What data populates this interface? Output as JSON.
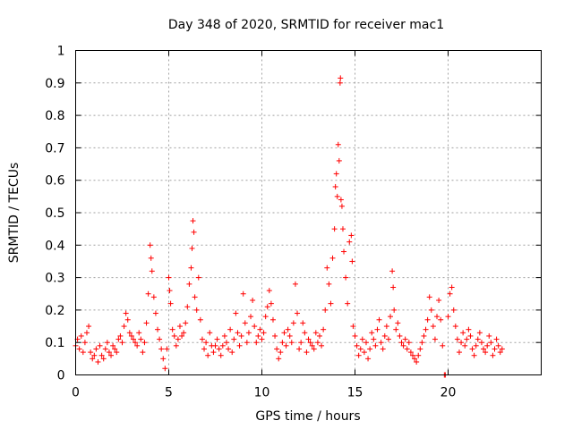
{
  "chart_data": {
    "type": "scatter",
    "title": "Day 348 of 2020, SRMTID for receiver mac1",
    "xlabel": "GPS time / hours",
    "ylabel": "SRMTID / TECUs",
    "xlim": [
      0,
      25
    ],
    "ylim": [
      0,
      1
    ],
    "xticks": [
      0,
      5,
      10,
      15,
      20
    ],
    "xtick_labels": [
      "0",
      "5",
      "10",
      "15",
      "20"
    ],
    "yticks": [
      0,
      0.1,
      0.2,
      0.3,
      0.4,
      0.5,
      0.6,
      0.7,
      0.8,
      0.9,
      1
    ],
    "ytick_labels": [
      "0",
      "0.1",
      "0.2",
      "0.3",
      "0.4",
      "0.5",
      "0.6",
      "0.7",
      "0.8",
      "0.9",
      "1"
    ],
    "grid": true,
    "marker": "+",
    "marker_color": "#ff0000",
    "series": [
      {
        "name": "SRMTID",
        "points": [
          [
            0.0,
            0.09
          ],
          [
            0.1,
            0.11
          ],
          [
            0.2,
            0.08
          ],
          [
            0.3,
            0.12
          ],
          [
            0.4,
            0.07
          ],
          [
            0.5,
            0.1
          ],
          [
            0.6,
            0.13
          ],
          [
            0.7,
            0.15
          ],
          [
            0.8,
            0.07
          ],
          [
            0.9,
            0.05
          ],
          [
            1.0,
            0.06
          ],
          [
            1.1,
            0.08
          ],
          [
            1.2,
            0.04
          ],
          [
            1.3,
            0.09
          ],
          [
            1.4,
            0.06
          ],
          [
            1.5,
            0.05
          ],
          [
            1.6,
            0.08
          ],
          [
            1.7,
            0.1
          ],
          [
            1.8,
            0.07
          ],
          [
            1.9,
            0.06
          ],
          [
            2.0,
            0.09
          ],
          [
            2.1,
            0.08
          ],
          [
            2.2,
            0.07
          ],
          [
            2.3,
            0.11
          ],
          [
            2.4,
            0.12
          ],
          [
            2.5,
            0.1
          ],
          [
            2.6,
            0.15
          ],
          [
            2.7,
            0.19
          ],
          [
            2.8,
            0.17
          ],
          [
            2.9,
            0.13
          ],
          [
            3.0,
            0.12
          ],
          [
            3.1,
            0.11
          ],
          [
            3.2,
            0.1
          ],
          [
            3.3,
            0.09
          ],
          [
            3.4,
            0.13
          ],
          [
            3.5,
            0.11
          ],
          [
            3.6,
            0.07
          ],
          [
            3.7,
            0.1
          ],
          [
            3.8,
            0.16
          ],
          [
            3.9,
            0.25
          ],
          [
            4.0,
            0.4
          ],
          [
            4.05,
            0.36
          ],
          [
            4.1,
            0.32
          ],
          [
            4.2,
            0.24
          ],
          [
            4.3,
            0.19
          ],
          [
            4.4,
            0.14
          ],
          [
            4.5,
            0.11
          ],
          [
            4.6,
            0.08
          ],
          [
            4.7,
            0.05
          ],
          [
            4.8,
            0.02
          ],
          [
            4.9,
            0.08
          ],
          [
            5.0,
            0.3
          ],
          [
            5.05,
            0.26
          ],
          [
            5.1,
            0.22
          ],
          [
            5.2,
            0.14
          ],
          [
            5.3,
            0.12
          ],
          [
            5.4,
            0.09
          ],
          [
            5.5,
            0.11
          ],
          [
            5.6,
            0.15
          ],
          [
            5.7,
            0.12
          ],
          [
            5.8,
            0.13
          ],
          [
            5.9,
            0.16
          ],
          [
            6.0,
            0.21
          ],
          [
            6.1,
            0.28
          ],
          [
            6.2,
            0.33
          ],
          [
            6.25,
            0.39
          ],
          [
            6.3,
            0.475
          ],
          [
            6.35,
            0.44
          ],
          [
            6.4,
            0.24
          ],
          [
            6.5,
            0.2
          ],
          [
            6.6,
            0.3
          ],
          [
            6.7,
            0.17
          ],
          [
            6.8,
            0.11
          ],
          [
            6.9,
            0.08
          ],
          [
            7.0,
            0.1
          ],
          [
            7.1,
            0.06
          ],
          [
            7.2,
            0.13
          ],
          [
            7.3,
            0.09
          ],
          [
            7.4,
            0.07
          ],
          [
            7.5,
            0.09
          ],
          [
            7.6,
            0.11
          ],
          [
            7.7,
            0.08
          ],
          [
            7.8,
            0.06
          ],
          [
            7.9,
            0.09
          ],
          [
            8.0,
            0.12
          ],
          [
            8.1,
            0.1
          ],
          [
            8.2,
            0.08
          ],
          [
            8.3,
            0.14
          ],
          [
            8.4,
            0.07
          ],
          [
            8.5,
            0.11
          ],
          [
            8.6,
            0.19
          ],
          [
            8.7,
            0.13
          ],
          [
            8.8,
            0.09
          ],
          [
            8.9,
            0.12
          ],
          [
            9.0,
            0.25
          ],
          [
            9.1,
            0.16
          ],
          [
            9.2,
            0.1
          ],
          [
            9.3,
            0.13
          ],
          [
            9.4,
            0.18
          ],
          [
            9.5,
            0.23
          ],
          [
            9.6,
            0.15
          ],
          [
            9.7,
            0.1
          ],
          [
            9.8,
            0.12
          ],
          [
            9.9,
            0.14
          ],
          [
            10.0,
            0.11
          ],
          [
            10.1,
            0.13
          ],
          [
            10.2,
            0.18
          ],
          [
            10.3,
            0.21
          ],
          [
            10.4,
            0.26
          ],
          [
            10.5,
            0.22
          ],
          [
            10.6,
            0.17
          ],
          [
            10.7,
            0.12
          ],
          [
            10.8,
            0.08
          ],
          [
            10.9,
            0.05
          ],
          [
            11.0,
            0.07
          ],
          [
            11.1,
            0.1
          ],
          [
            11.2,
            0.13
          ],
          [
            11.3,
            0.09
          ],
          [
            11.4,
            0.14
          ],
          [
            11.5,
            0.12
          ],
          [
            11.6,
            0.1
          ],
          [
            11.7,
            0.16
          ],
          [
            11.8,
            0.28
          ],
          [
            11.9,
            0.19
          ],
          [
            12.0,
            0.08
          ],
          [
            12.1,
            0.1
          ],
          [
            12.2,
            0.16
          ],
          [
            12.3,
            0.13
          ],
          [
            12.4,
            0.07
          ],
          [
            12.5,
            0.11
          ],
          [
            12.6,
            0.1
          ],
          [
            12.7,
            0.09
          ],
          [
            12.8,
            0.08
          ],
          [
            12.9,
            0.13
          ],
          [
            13.0,
            0.1
          ],
          [
            13.1,
            0.12
          ],
          [
            13.2,
            0.09
          ],
          [
            13.3,
            0.14
          ],
          [
            13.4,
            0.2
          ],
          [
            13.5,
            0.33
          ],
          [
            13.6,
            0.28
          ],
          [
            13.7,
            0.22
          ],
          [
            13.8,
            0.36
          ],
          [
            13.9,
            0.45
          ],
          [
            13.95,
            0.58
          ],
          [
            14.0,
            0.62
          ],
          [
            14.05,
            0.55
          ],
          [
            14.1,
            0.71
          ],
          [
            14.15,
            0.66
          ],
          [
            14.2,
            0.9
          ],
          [
            14.22,
            0.915
          ],
          [
            14.25,
            0.54
          ],
          [
            14.3,
            0.52
          ],
          [
            14.35,
            0.45
          ],
          [
            14.4,
            0.38
          ],
          [
            14.5,
            0.3
          ],
          [
            14.6,
            0.22
          ],
          [
            14.7,
            0.41
          ],
          [
            14.8,
            0.43
          ],
          [
            14.85,
            0.35
          ],
          [
            14.9,
            0.15
          ],
          [
            15.0,
            0.12
          ],
          [
            15.1,
            0.09
          ],
          [
            15.2,
            0.06
          ],
          [
            15.3,
            0.08
          ],
          [
            15.4,
            0.11
          ],
          [
            15.5,
            0.07
          ],
          [
            15.6,
            0.1
          ],
          [
            15.7,
            0.05
          ],
          [
            15.8,
            0.08
          ],
          [
            15.9,
            0.13
          ],
          [
            16.0,
            0.11
          ],
          [
            16.1,
            0.09
          ],
          [
            16.2,
            0.14
          ],
          [
            16.3,
            0.17
          ],
          [
            16.4,
            0.1
          ],
          [
            16.5,
            0.08
          ],
          [
            16.6,
            0.12
          ],
          [
            16.7,
            0.15
          ],
          [
            16.8,
            0.11
          ],
          [
            16.9,
            0.18
          ],
          [
            17.0,
            0.32
          ],
          [
            17.05,
            0.27
          ],
          [
            17.1,
            0.2
          ],
          [
            17.2,
            0.14
          ],
          [
            17.3,
            0.16
          ],
          [
            17.4,
            0.12
          ],
          [
            17.5,
            0.1
          ],
          [
            17.6,
            0.09
          ],
          [
            17.7,
            0.11
          ],
          [
            17.8,
            0.08
          ],
          [
            17.9,
            0.1
          ],
          [
            18.0,
            0.07
          ],
          [
            18.1,
            0.06
          ],
          [
            18.2,
            0.05
          ],
          [
            18.3,
            0.04
          ],
          [
            18.4,
            0.06
          ],
          [
            18.5,
            0.08
          ],
          [
            18.6,
            0.1
          ],
          [
            18.7,
            0.12
          ],
          [
            18.8,
            0.14
          ],
          [
            18.9,
            0.17
          ],
          [
            19.0,
            0.24
          ],
          [
            19.1,
            0.2
          ],
          [
            19.2,
            0.15
          ],
          [
            19.3,
            0.11
          ],
          [
            19.4,
            0.18
          ],
          [
            19.5,
            0.23
          ],
          [
            19.6,
            0.17
          ],
          [
            19.7,
            0.09
          ],
          [
            19.8,
            0.0
          ],
          [
            19.85,
            0.0
          ],
          [
            20.0,
            0.18
          ],
          [
            20.1,
            0.25
          ],
          [
            20.2,
            0.27
          ],
          [
            20.3,
            0.2
          ],
          [
            20.4,
            0.15
          ],
          [
            20.5,
            0.11
          ],
          [
            20.6,
            0.07
          ],
          [
            20.7,
            0.1
          ],
          [
            20.8,
            0.13
          ],
          [
            20.9,
            0.09
          ],
          [
            21.0,
            0.11
          ],
          [
            21.1,
            0.14
          ],
          [
            21.2,
            0.12
          ],
          [
            21.3,
            0.08
          ],
          [
            21.4,
            0.06
          ],
          [
            21.5,
            0.09
          ],
          [
            21.6,
            0.11
          ],
          [
            21.7,
            0.13
          ],
          [
            21.8,
            0.1
          ],
          [
            21.9,
            0.08
          ],
          [
            22.0,
            0.07
          ],
          [
            22.1,
            0.09
          ],
          [
            22.2,
            0.12
          ],
          [
            22.3,
            0.1
          ],
          [
            22.4,
            0.06
          ],
          [
            22.5,
            0.08
          ],
          [
            22.6,
            0.11
          ],
          [
            22.7,
            0.09
          ],
          [
            22.8,
            0.07
          ],
          [
            22.9,
            0.08
          ]
        ]
      }
    ]
  }
}
